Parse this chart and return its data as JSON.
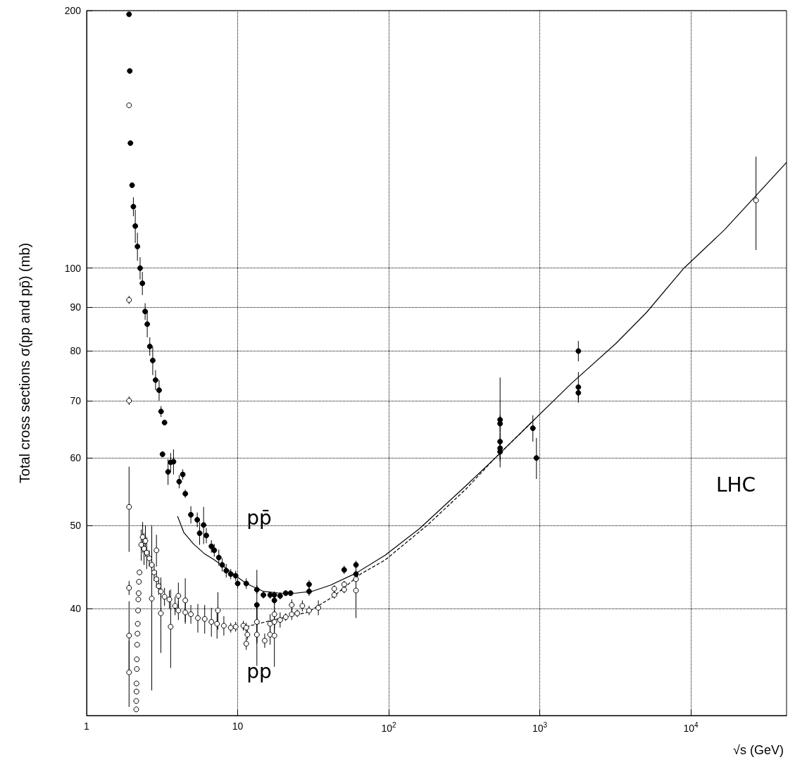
{
  "chart_data": {
    "type": "scatter",
    "xlabel": "√s (GeV)",
    "ylabel": "Total cross sections σ(pp and pp̄) (mb)",
    "log": "xy",
    "grid": true,
    "xlim": [
      1,
      43000
    ],
    "ylim": [
      30,
      200
    ],
    "xticks": [
      1,
      10,
      {
        "value": 100,
        "label": "10$^{2}$"
      },
      {
        "value": 1000,
        "label": "10$^{3}$"
      },
      {
        "value": 10000,
        "label": "10$^{4}$"
      }
    ],
    "yticks": [
      40,
      50,
      60,
      70,
      80,
      90,
      100,
      200
    ],
    "annotations": [
      "pp̄",
      "pp",
      "LHC"
    ],
    "series": [
      {
        "color": "#000000",
        "marker": "circle",
        "x": [
          1.91,
          1.93,
          1.95,
          2.0,
          2.04,
          2.1,
          2.17,
          2.26,
          2.34,
          2.44,
          2.52,
          2.62,
          2.74,
          2.86,
          3.02,
          3.11,
          3.18,
          3.28,
          3.46,
          3.6,
          3.76,
          4.1,
          4.33,
          4.5,
          4.9,
          5.4,
          5.6,
          5.95,
          6.2,
          6.7,
          7.0,
          7.5,
          7.9,
          8.4,
          9.0,
          9.7,
          10,
          11.4,
          13.4,
          13.4,
          14.8,
          16.4,
          17.5,
          17.5,
          19.1,
          20.8,
          22.4,
          29.7,
          29.7,
          50.7,
          60.7,
          60.7,
          546,
          546,
          546,
          546,
          546,
          900,
          950,
          1800,
          1800,
          1800
        ],
        "values": [
          198,
          170,
          140,
          125,
          118,
          112,
          106,
          100,
          96,
          89,
          86,
          81,
          78,
          74,
          72,
          68,
          60.6,
          66,
          57.8,
          59.3,
          59.4,
          56.3,
          57.4,
          54.5,
          51.5,
          50.8,
          49.0,
          50.1,
          48.7,
          47.3,
          46.8,
          45.9,
          45.0,
          44.3,
          43.9,
          43.7,
          42.8,
          42.8,
          42.1,
          40.4,
          41.5,
          41.5,
          41.5,
          40.9,
          41.4,
          41.7,
          41.7,
          42.7,
          41.9,
          44.4,
          45.0,
          43.9,
          66.5,
          65.8,
          62.7,
          61.6,
          61.0,
          65.0,
          60.0,
          80.0,
          72.6,
          71.5
        ],
        "errors": [
          null,
          null,
          null,
          null,
          3,
          5,
          4,
          3,
          3,
          2,
          3,
          2,
          3,
          2,
          2,
          1,
          0.5,
          0.5,
          2,
          1.5,
          2,
          1,
          0.8,
          0.6,
          1.2,
          1,
          1.5,
          2.5,
          1,
          0.8,
          0.8,
          1,
          0.8,
          0.8,
          0.6,
          0.6,
          0.6,
          0.6,
          0.5,
          4,
          0.4,
          0.4,
          0.4,
          0.5,
          0.4,
          0.3,
          0.3,
          0.5,
          0.5,
          0.5,
          0.5,
          0.5,
          8,
          1.5,
          1.5,
          1.5,
          1.5,
          2.3,
          3.3,
          2.2,
          3,
          1.5
        ]
      },
      {
        "color": "#ffffff",
        "marker": "circle",
        "x": [
          1.91,
          1.91,
          1.91,
          1.91,
          1.91,
          1.91,
          1.91,
          2.13,
          2.13,
          2.14,
          2.14,
          2.15,
          2.15,
          2.16,
          2.17,
          2.18,
          2.19,
          2.2,
          2.21,
          2.22,
          2.24,
          2.3,
          2.35,
          2.4,
          2.45,
          2.5,
          2.6,
          2.7,
          2.7,
          2.8,
          2.9,
          2.9,
          3.0,
          3.1,
          3.1,
          3.28,
          3.53,
          3.6,
          3.85,
          4.05,
          4.05,
          4.5,
          4.5,
          4.9,
          5.45,
          6.05,
          6.7,
          7.3,
          7.4,
          8.1,
          9.0,
          9.7,
          10.9,
          11.4,
          11.6,
          11.4,
          13.4,
          13.4,
          15.1,
          16.4,
          16.4,
          17.5,
          17.5,
          17.5,
          19.1,
          20.8,
          22.8,
          22.8,
          24.8,
          26.8,
          29.7,
          34.2,
          43.6,
          43.6,
          50.7,
          50.7,
          60.7,
          60.7,
          27000
        ],
        "values": [
          155,
          91.8,
          70,
          52.6,
          42.3,
          37.2,
          33.7,
          30.5,
          31.2,
          32.0,
          32.7,
          34.0,
          34.9,
          36.3,
          37.4,
          38.4,
          39.8,
          41.0,
          41.7,
          43.0,
          44.1,
          47.5,
          48.5,
          47.0,
          48.0,
          46.5,
          45.8,
          45.0,
          41.1,
          44.1,
          43.3,
          46.8,
          42.5,
          41.9,
          39.5,
          41.3,
          41.0,
          38.1,
          40.3,
          39.8,
          41.4,
          39.6,
          40.9,
          39.4,
          39.0,
          38.9,
          38.6,
          38.4,
          39.8,
          38.2,
          38.0,
          38.1,
          38.2,
          38.0,
          37.3,
          36.4,
          38.6,
          37.3,
          36.7,
          38.4,
          37.3,
          39.4,
          38.6,
          37.2,
          38.8,
          39.1,
          39.4,
          40.4,
          39.5,
          40.3,
          39.8,
          40.1,
          42.2,
          41.5,
          42.7,
          42.1,
          43.3,
          42.0,
          120
        ],
        "errors": [
          null,
          1,
          0.8,
          6,
          0.8,
          3.6,
          3,
          null,
          null,
          null,
          null,
          null,
          null,
          null,
          null,
          null,
          null,
          null,
          null,
          null,
          null,
          2,
          2,
          2,
          2,
          2,
          1,
          1.5,
          9,
          1,
          1,
          2,
          1,
          1,
          4,
          1,
          1,
          4,
          1,
          1,
          1.5,
          1,
          2.5,
          1,
          1.5,
          1.5,
          1.5,
          1.5,
          2,
          1,
          0.5,
          0.5,
          0.5,
          0.5,
          0.5,
          0.6,
          2,
          3,
          0.7,
          1,
          1,
          1.5,
          1,
          3,
          0.8,
          0.4,
          0.6,
          0.6,
          0.4,
          0.6,
          0.5,
          0.8,
          0.4,
          0.4,
          0.4,
          0.4,
          0.4,
          3,
          15
        ]
      },
      {
        "type": "line",
        "color": "#000000",
        "marker": "none",
        "line_style": "solid",
        "x": [
          4.0,
          4.4,
          5.1,
          6.0,
          6.9,
          8.1,
          9.7,
          11.4,
          14.8,
          19.1,
          24.1,
          31.0,
          41,
          60.7,
          94.8,
          159.6,
          325,
          502,
          918,
          1629,
          3179,
          5070,
          9000,
          16640,
          43000
        ],
        "values": [
          51.3,
          49.1,
          47.6,
          46.4,
          45.7,
          44.8,
          43.7,
          42.8,
          41.9,
          41.7,
          41.7,
          41.9,
          42.6,
          44.0,
          46.2,
          49.6,
          55.7,
          59.9,
          66.5,
          73.4,
          81.6,
          88.7,
          100,
          110.8,
          132.9
        ]
      },
      {
        "type": "line",
        "color": "#000000",
        "marker": "none",
        "line_style": "dashed",
        "x": [
          11.4,
          18.3,
          28.9,
          42.8,
          65.1,
          94.8,
          183,
          325,
          502,
          918
        ],
        "values": [
          38.1,
          38.9,
          39.6,
          41.3,
          43.9,
          45.6,
          50.2,
          55.2,
          59.9,
          66.5
        ]
      }
    ]
  }
}
